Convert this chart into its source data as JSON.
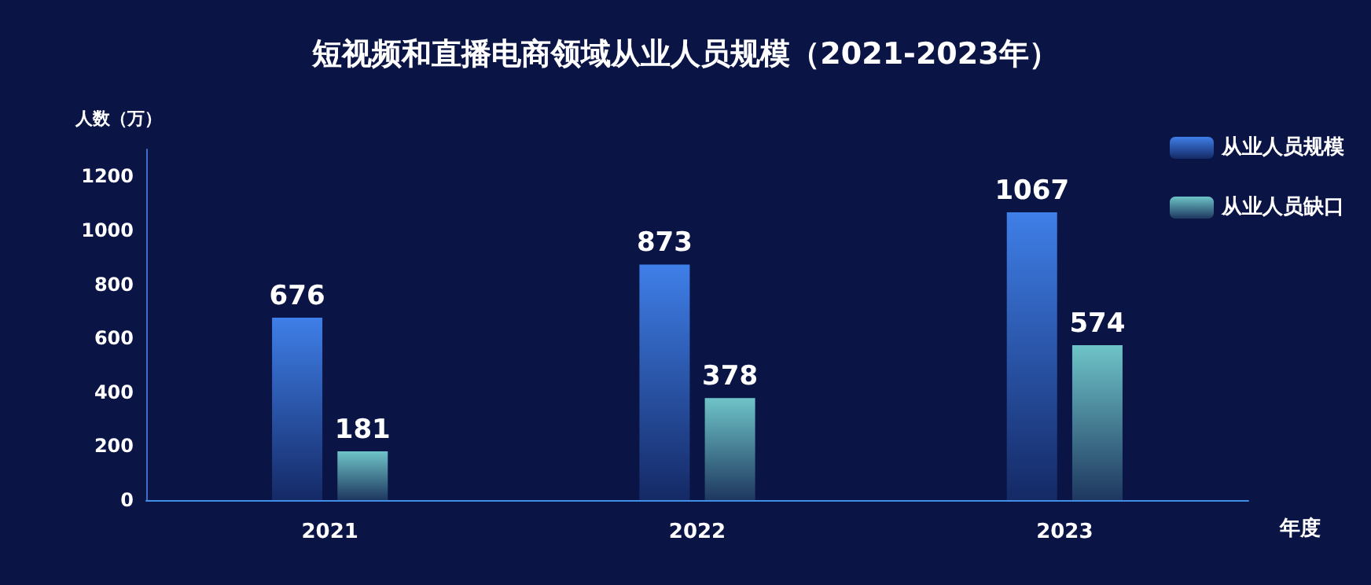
{
  "chart_data": {
    "type": "bar",
    "title": "短视频和直播电商领域从业人员规模（2021-2023年）",
    "xlabel": "年度",
    "ylabel": "人数（万）",
    "categories": [
      "2021",
      "2022",
      "2023"
    ],
    "series": [
      {
        "name": "从业人员规模",
        "color": "#3f7fe8",
        "values": [
          676,
          873,
          1067
        ]
      },
      {
        "name": "从业人员缺口",
        "color": "#6ec4c8",
        "values": [
          181,
          378,
          574
        ]
      }
    ],
    "ylim": [
      0,
      1300
    ],
    "yticks": [
      0,
      200,
      400,
      600,
      800,
      1000,
      1200
    ],
    "grid": false,
    "legend": "top right",
    "data_labels": true
  }
}
